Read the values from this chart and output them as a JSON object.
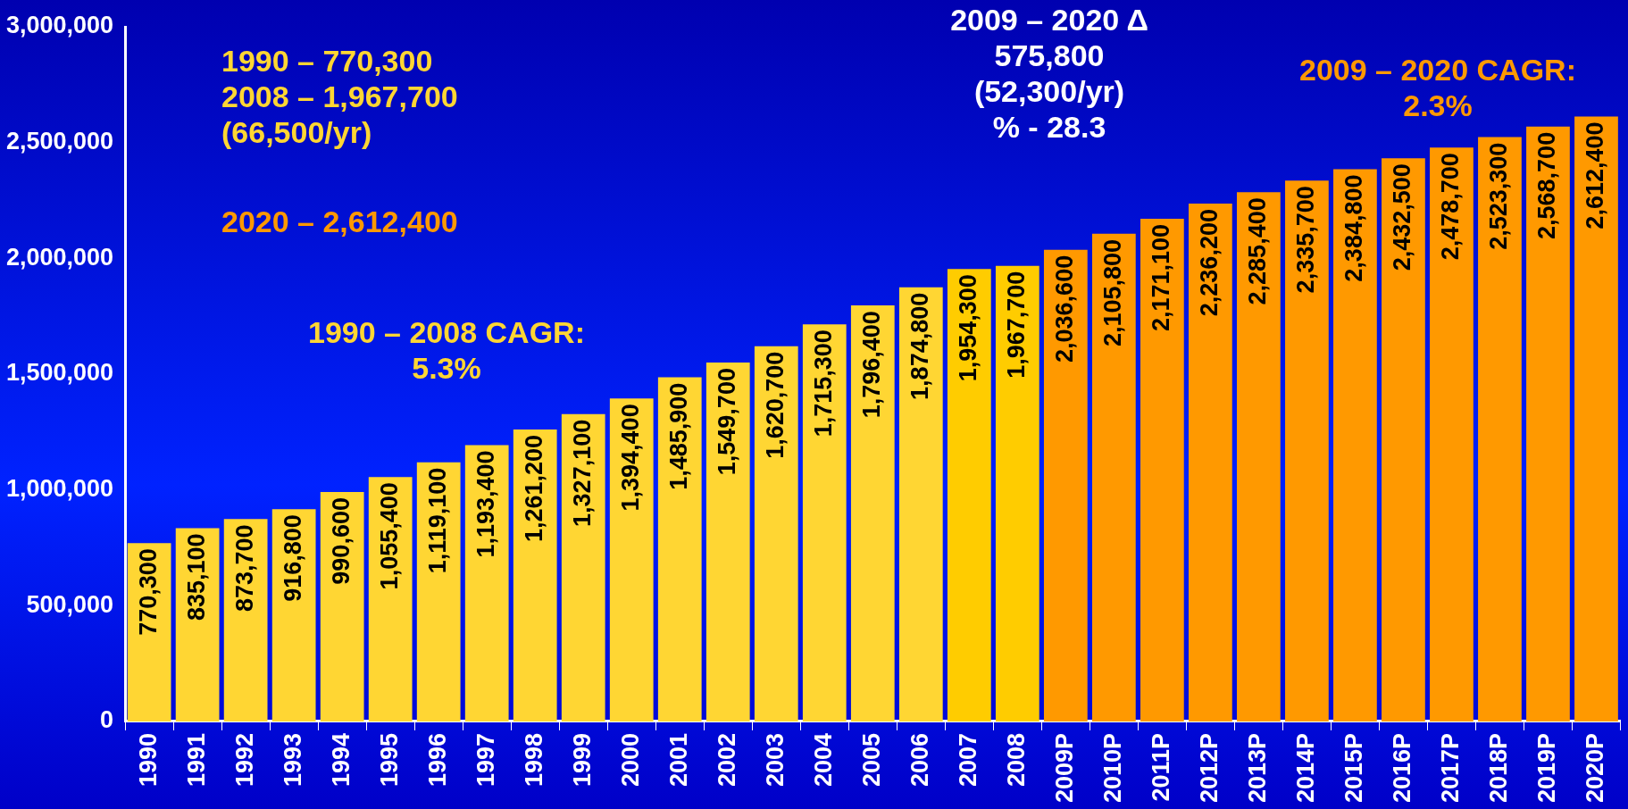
{
  "chart_data": {
    "type": "bar",
    "categories": [
      "1990",
      "1991",
      "1992",
      "1993",
      "1994",
      "1995",
      "1996",
      "1997",
      "1998",
      "1999",
      "2000",
      "2001",
      "2002",
      "2003",
      "2004",
      "2005",
      "2006",
      "2007",
      "2008",
      "2009P",
      "2010P",
      "2011P",
      "2012P",
      "2013P",
      "2014P",
      "2015P",
      "2016P",
      "2017P",
      "2018P",
      "2019P",
      "2020P"
    ],
    "values": [
      770300,
      835100,
      873700,
      916800,
      990600,
      1055400,
      1119100,
      1193400,
      1261200,
      1327100,
      1394400,
      1485900,
      1549700,
      1620700,
      1715300,
      1796400,
      1874800,
      1954300,
      1967700,
      2036600,
      2105800,
      2171100,
      2236200,
      2285400,
      2335700,
      2384800,
      2432500,
      2478700,
      2523300,
      2568700,
      2612400
    ],
    "colors": [
      "#ffd633",
      "#ffd633",
      "#ffd633",
      "#ffd633",
      "#ffd633",
      "#ffd633",
      "#ffd633",
      "#ffd633",
      "#ffd633",
      "#ffd633",
      "#ffd633",
      "#ffd633",
      "#ffd633",
      "#ffd633",
      "#ffd633",
      "#ffd633",
      "#ffd633",
      "#ffcc00",
      "#ffcc00",
      "#ff9900",
      "#ff9900",
      "#ff9900",
      "#ff9900",
      "#ff9900",
      "#ff9900",
      "#ff9900",
      "#ff9900",
      "#ff9900",
      "#ff9900",
      "#ff9900",
      "#ff9900"
    ],
    "ylim": [
      0,
      3000000
    ],
    "yticks": [
      {
        "value": 0,
        "label": "0"
      },
      {
        "value": 500000,
        "label": "500,000"
      },
      {
        "value": 1000000,
        "label": "1,000,000"
      },
      {
        "value": 1500000,
        "label": "1,500,000"
      },
      {
        "value": 2000000,
        "label": "2,000,000"
      },
      {
        "value": 2500000,
        "label": "2,500,000"
      },
      {
        "value": 3000000,
        "label": "3,000,000"
      }
    ],
    "grid": false,
    "legend": false,
    "value_labels": [
      "770,300",
      "835,100",
      "873,700",
      "916,800",
      "990,600",
      "1,055,400",
      "1,119,100",
      "1,193,400",
      "1,261,200",
      "1,327,100",
      "1,394,400",
      "1,485,900",
      "1,549,700",
      "1,620,700",
      "1,715,300",
      "1,796,400",
      "1,874,800",
      "1,954,300",
      "1,967,700",
      "2,036,600",
      "2,105,800",
      "2,171,100",
      "2,236,200",
      "2,285,400",
      "2,335,700",
      "2,384,800",
      "2,432,500",
      "2,478,700",
      "2,523,300",
      "2,568,700",
      "2,612,400"
    ],
    "annotations": [
      "1990 – 770,300\n2008 – 1,967,700\n(66,500/yr)",
      "2020 – 2,612,400",
      "1990 – 2008 CAGR:\n5.3%",
      "2009 – 2020 Δ\n575,800\n(52,300/yr)\n% - 28.3",
      "2009 – 2020 CAGR:\n2.3%"
    ]
  }
}
